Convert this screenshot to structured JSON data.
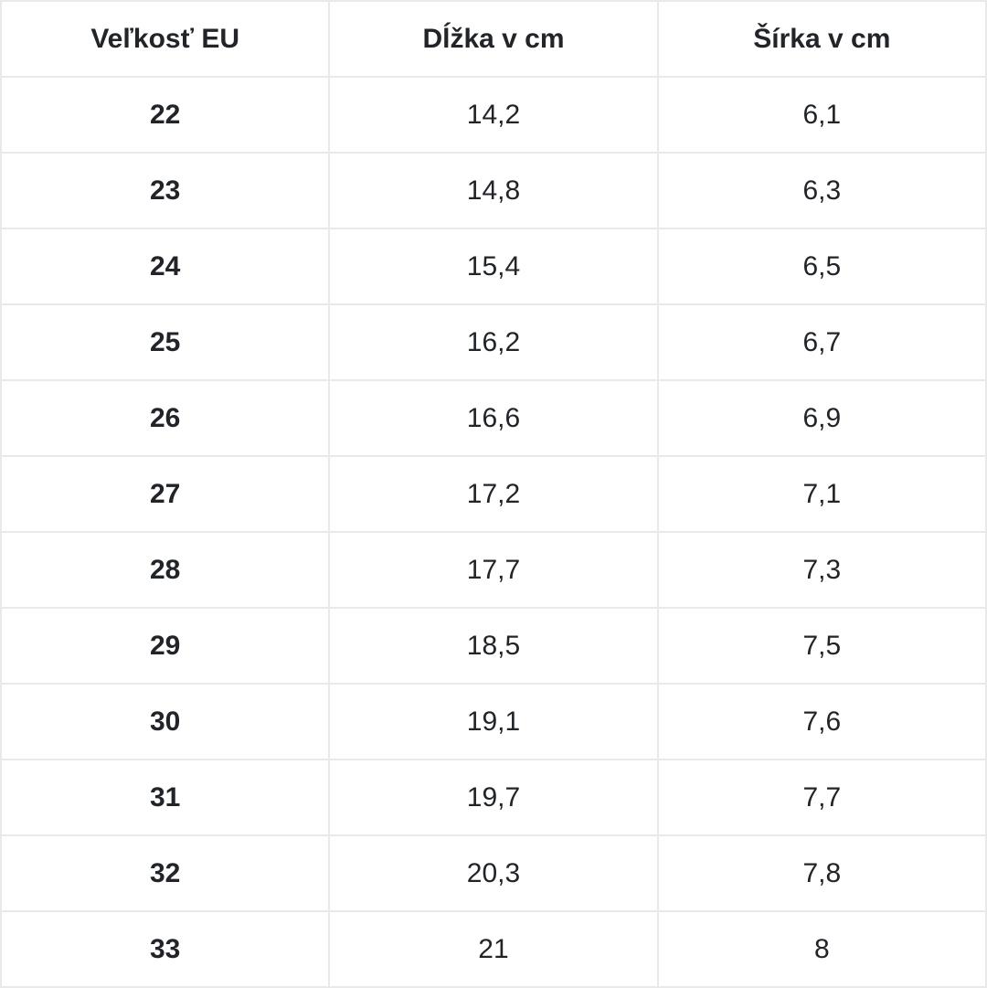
{
  "colors": {
    "border": "#e9e9e9",
    "text": "#212529",
    "background": "#ffffff"
  },
  "chart_data": {
    "type": "table",
    "title": "",
    "columns": [
      "Veľkosť EU",
      "Dĺžka v cm",
      "Šírka v cm"
    ],
    "rows": [
      [
        "22",
        "14,2",
        "6,1"
      ],
      [
        "23",
        "14,8",
        "6,3"
      ],
      [
        "24",
        "15,4",
        "6,5"
      ],
      [
        "25",
        "16,2",
        "6,7"
      ],
      [
        "26",
        "16,6",
        "6,9"
      ],
      [
        "27",
        "17,2",
        "7,1"
      ],
      [
        "28",
        "17,7",
        "7,3"
      ],
      [
        "29",
        "18,5",
        "7,5"
      ],
      [
        "30",
        "19,1",
        "7,6"
      ],
      [
        "31",
        "19,7",
        "7,7"
      ],
      [
        "32",
        "20,3",
        "7,8"
      ],
      [
        "33",
        "21",
        "8"
      ]
    ],
    "rows_numeric": [
      {
        "size_eu": 22,
        "length_cm": 14.2,
        "width_cm": 6.1
      },
      {
        "size_eu": 23,
        "length_cm": 14.8,
        "width_cm": 6.3
      },
      {
        "size_eu": 24,
        "length_cm": 15.4,
        "width_cm": 6.5
      },
      {
        "size_eu": 25,
        "length_cm": 16.2,
        "width_cm": 6.7
      },
      {
        "size_eu": 26,
        "length_cm": 16.6,
        "width_cm": 6.9
      },
      {
        "size_eu": 27,
        "length_cm": 17.2,
        "width_cm": 7.1
      },
      {
        "size_eu": 28,
        "length_cm": 17.7,
        "width_cm": 7.3
      },
      {
        "size_eu": 29,
        "length_cm": 18.5,
        "width_cm": 7.5
      },
      {
        "size_eu": 30,
        "length_cm": 19.1,
        "width_cm": 7.6
      },
      {
        "size_eu": 31,
        "length_cm": 19.7,
        "width_cm": 7.7
      },
      {
        "size_eu": 32,
        "length_cm": 20.3,
        "width_cm": 7.8
      },
      {
        "size_eu": 33,
        "length_cm": 21,
        "width_cm": 8
      }
    ],
    "layout": {
      "grid": true,
      "header_bold": true,
      "first_column_bold": true,
      "cell_alignment": "center"
    }
  }
}
